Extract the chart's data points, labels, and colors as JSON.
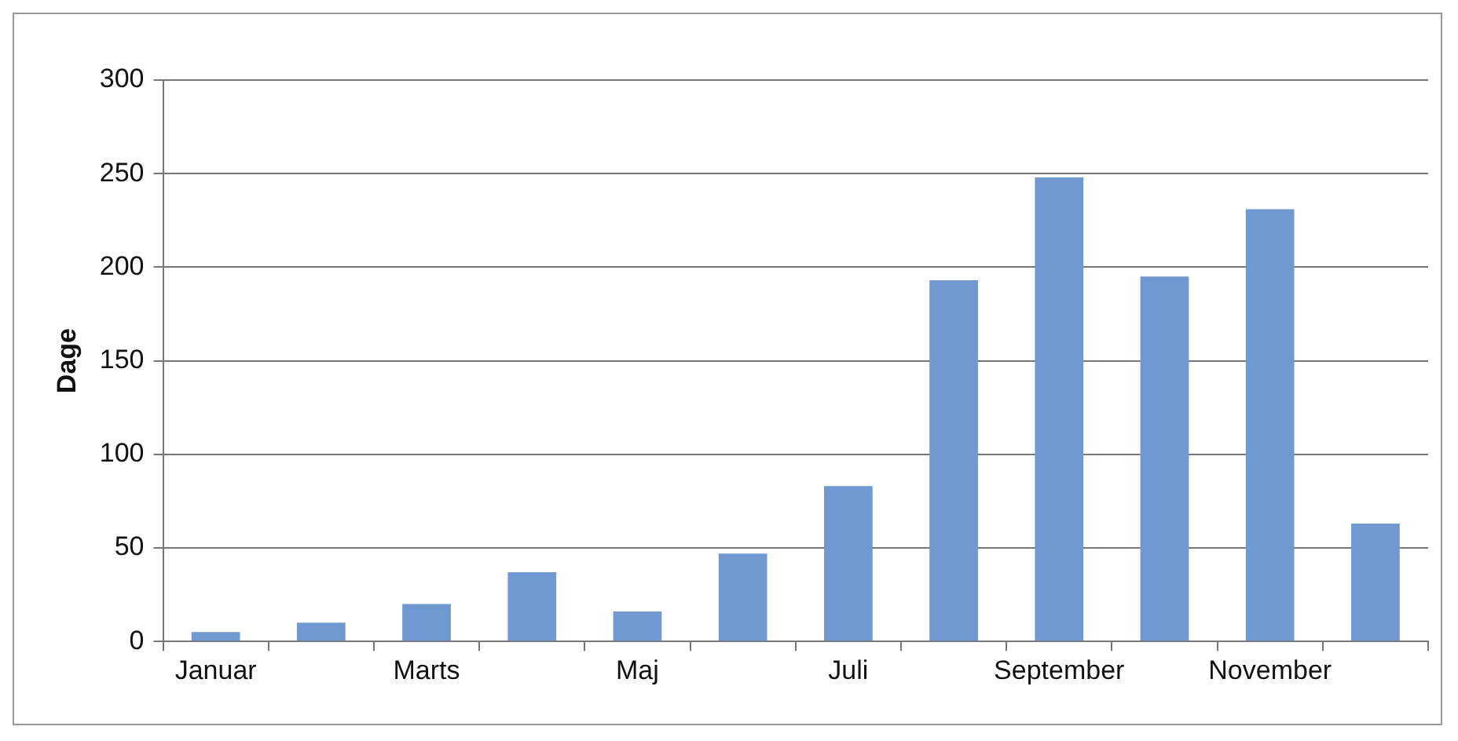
{
  "chart_data": {
    "type": "bar",
    "ylabel": "Dage",
    "categories": [
      "Januar",
      null,
      "Marts",
      null,
      "Maj",
      null,
      "Juli",
      null,
      "September",
      null,
      "November",
      null
    ],
    "values": [
      5,
      10,
      20,
      37,
      16,
      47,
      83,
      193,
      248,
      195,
      231,
      63
    ],
    "color": "#7099d2",
    "ylim": [
      0,
      300
    ],
    "yticks": [
      0,
      50,
      100,
      150,
      200,
      250,
      300
    ],
    "grid": "y",
    "legend": false
  }
}
